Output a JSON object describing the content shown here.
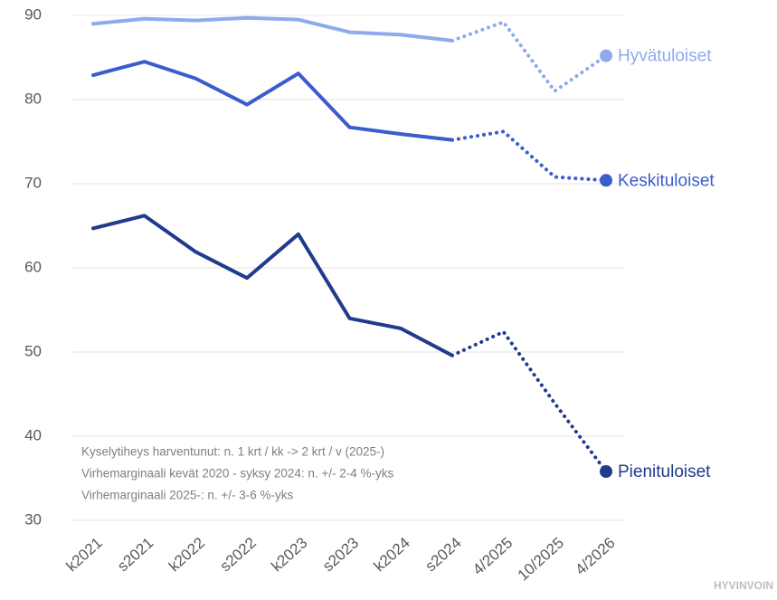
{
  "chart_data": {
    "type": "line",
    "categories": [
      "k2021",
      "s2021",
      "k2022",
      "s2022",
      "k2023",
      "s2023",
      "k2024",
      "s2024",
      "4/2025",
      "10/2025",
      "4/2026"
    ],
    "dotted_from": "s2024",
    "series": [
      {
        "name": "Hyvätuloiset",
        "color": "#8eaaea",
        "values": [
          89.0,
          89.6,
          89.4,
          89.7,
          89.5,
          88.0,
          87.7,
          87.0,
          89.2,
          81.0,
          85.2
        ]
      },
      {
        "name": "Keskituloiset",
        "color": "#3a5ccc",
        "values": [
          82.9,
          84.5,
          82.5,
          79.4,
          83.1,
          76.7,
          75.9,
          75.2,
          76.2,
          70.8,
          70.4
        ]
      },
      {
        "name": "Pienituloiset",
        "color": "#203a8c",
        "values": [
          64.7,
          66.2,
          61.9,
          58.8,
          64.0,
          54.0,
          52.8,
          49.6,
          52.4,
          43.9,
          35.8
        ]
      }
    ],
    "ylim": [
      30,
      90
    ],
    "yticks": [
      30,
      40,
      50,
      60,
      70,
      80,
      90
    ],
    "grid": true,
    "annotations": [
      "Kyselytiheys harventunut: n. 1 krt / kk -> 2 krt / v (2025-)",
      "Virhemarginaali kevät 2020 - syksy 2024: n. +/- 2-4 %-yks",
      "Virhemarginaali 2025-: n. +/- 3-6 %-yks"
    ],
    "source": "HYVINVOIN"
  }
}
